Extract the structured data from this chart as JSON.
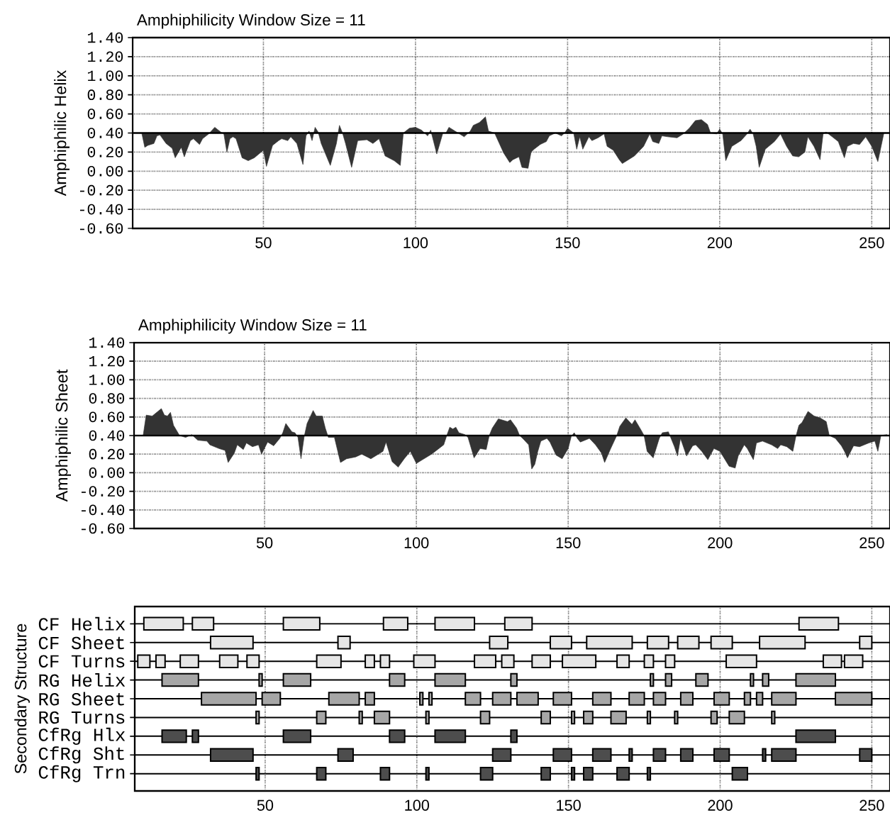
{
  "chart_data": [
    {
      "type": "area",
      "title": "Amphiphilicity Window Size = 11",
      "ylabel": "Amphiphilic Helix",
      "color": "#333333",
      "x": [
        10,
        11,
        12,
        14,
        15,
        16,
        18,
        20,
        21,
        23,
        24,
        26,
        27,
        29,
        30,
        32,
        34,
        36,
        37,
        38,
        39,
        40,
        41,
        43,
        45,
        47,
        50,
        51,
        53,
        55,
        56,
        58,
        59,
        61,
        63,
        64,
        65,
        66,
        67,
        68,
        69,
        72,
        74,
        75,
        76,
        77,
        79,
        81,
        84,
        86,
        88,
        90,
        93,
        95,
        96,
        98,
        100,
        102,
        104,
        105,
        107,
        109,
        110,
        111,
        113,
        116,
        118,
        119,
        121,
        123,
        124,
        126,
        129,
        131,
        132,
        134,
        135,
        137,
        138,
        139,
        141,
        143,
        144,
        146,
        148,
        149,
        150,
        152,
        153,
        154,
        155,
        157,
        158,
        160,
        162,
        163,
        165,
        167,
        168,
        170,
        172,
        175,
        177,
        178,
        180,
        181,
        183,
        186,
        188,
        190,
        192,
        194,
        196,
        197,
        199,
        200,
        201,
        202,
        204,
        205,
        207,
        209,
        210,
        211,
        212,
        213,
        215,
        218,
        220,
        222,
        224,
        226,
        228,
        229,
        231,
        233,
        234,
        235,
        237,
        239,
        241,
        242,
        244,
        246,
        248,
        250,
        252,
        254
      ],
      "values": [
        0.4,
        0.25,
        0.27,
        0.29,
        0.37,
        0.38,
        0.29,
        0.24,
        0.14,
        0.25,
        0.15,
        0.32,
        0.34,
        0.28,
        0.34,
        0.39,
        0.46,
        0.41,
        0.39,
        0.2,
        0.34,
        0.36,
        0.34,
        0.14,
        0.11,
        0.14,
        0.22,
        0.05,
        0.27,
        0.32,
        0.34,
        0.32,
        0.36,
        0.29,
        0.07,
        0.37,
        0.42,
        0.32,
        0.46,
        0.41,
        0.29,
        0.06,
        0.29,
        0.48,
        0.4,
        0.29,
        0.04,
        0.32,
        0.33,
        0.29,
        0.34,
        0.16,
        0.11,
        0.06,
        0.4,
        0.45,
        0.46,
        0.43,
        0.37,
        0.43,
        0.18,
        0.4,
        0.4,
        0.46,
        0.42,
        0.36,
        0.42,
        0.48,
        0.51,
        0.57,
        0.42,
        0.4,
        0.19,
        0.09,
        0.12,
        0.15,
        0.04,
        0.03,
        0.2,
        0.23,
        0.28,
        0.31,
        0.37,
        0.4,
        0.37,
        0.4,
        0.45,
        0.4,
        0.23,
        0.36,
        0.23,
        0.36,
        0.32,
        0.35,
        0.39,
        0.26,
        0.22,
        0.12,
        0.08,
        0.12,
        0.16,
        0.26,
        0.39,
        0.31,
        0.29,
        0.37,
        0.36,
        0.35,
        0.39,
        0.45,
        0.53,
        0.54,
        0.49,
        0.4,
        0.39,
        0.44,
        0.39,
        0.11,
        0.26,
        0.28,
        0.32,
        0.39,
        0.44,
        0.39,
        0.26,
        0.04,
        0.23,
        0.31,
        0.39,
        0.26,
        0.16,
        0.15,
        0.2,
        0.36,
        0.26,
        0.12,
        0.39,
        0.41,
        0.36,
        0.31,
        0.14,
        0.26,
        0.29,
        0.28,
        0.36,
        0.26,
        0.1,
        0.4
      ],
      "xlim": [
        7,
        256
      ],
      "xticks": [
        50,
        100,
        150,
        200,
        250
      ],
      "ylim": [
        -0.6,
        1.4
      ],
      "yticks": [
        {
          "value": -0.6,
          "label": "-0.60"
        },
        {
          "value": -0.4,
          "label": "-0.40"
        },
        {
          "value": -0.2,
          "label": "-0.20"
        },
        {
          "value": 0,
          "label": "0.00"
        },
        {
          "value": 0.2,
          "label": "0.20"
        },
        {
          "value": 0.4,
          "label": "0.40"
        },
        {
          "value": 0.6,
          "label": "0.60"
        },
        {
          "value": 0.8,
          "label": "0.80"
        },
        {
          "value": 1.0,
          "label": "1.00"
        },
        {
          "value": 1.2,
          "label": "1.20"
        },
        {
          "value": 1.4,
          "label": "1.40"
        }
      ],
      "ref_lines": [
        {
          "axis": "y",
          "value": 0.4
        }
      ],
      "grid": true
    },
    {
      "type": "area",
      "title": "Amphiphilicity Window Size = 11",
      "ylabel": "Amphiphilic Sheet",
      "color": "#333333",
      "x": [
        10,
        11,
        13,
        16,
        17,
        18,
        19,
        20,
        22,
        24,
        26,
        28,
        31,
        32,
        35,
        37,
        38,
        40,
        41,
        43,
        44,
        46,
        48,
        49,
        51,
        53,
        55,
        56,
        57,
        59,
        60,
        61,
        62,
        63,
        64,
        66,
        67,
        69,
        70,
        71,
        73,
        75,
        77,
        80,
        82,
        85,
        86,
        89,
        90,
        92,
        94,
        96,
        98,
        100,
        102,
        105,
        107,
        109,
        110,
        111,
        112,
        113,
        114,
        116,
        117,
        119,
        121,
        123,
        124,
        125,
        127,
        130,
        131,
        133,
        134,
        135,
        137,
        138,
        139,
        140,
        141,
        143,
        144,
        146,
        148,
        150,
        151,
        152,
        153,
        154,
        157,
        159,
        161,
        162,
        164,
        166,
        167,
        169,
        171,
        172,
        174,
        175,
        176,
        178,
        180,
        181,
        183,
        185,
        186,
        187,
        189,
        191,
        192,
        194,
        196,
        198,
        200,
        203,
        205,
        206,
        208,
        209,
        211,
        212,
        214,
        217,
        219,
        220,
        222,
        224,
        225,
        226,
        227,
        229,
        231,
        233,
        235,
        236,
        238,
        240,
        241,
        242,
        244,
        246,
        249,
        251,
        252,
        253,
        255
      ],
      "values": [
        0.4,
        0.62,
        0.61,
        0.69,
        0.62,
        0.61,
        0.65,
        0.51,
        0.4,
        0.38,
        0.41,
        0.35,
        0.34,
        0.3,
        0.26,
        0.24,
        0.11,
        0.21,
        0.3,
        0.25,
        0.32,
        0.28,
        0.3,
        0.2,
        0.33,
        0.29,
        0.37,
        0.43,
        0.53,
        0.44,
        0.43,
        0.38,
        0.15,
        0.38,
        0.53,
        0.67,
        0.61,
        0.61,
        0.48,
        0.38,
        0.38,
        0.11,
        0.15,
        0.17,
        0.2,
        0.15,
        0.17,
        0.23,
        0.33,
        0.12,
        0.06,
        0.15,
        0.23,
        0.1,
        0.14,
        0.2,
        0.25,
        0.3,
        0.4,
        0.49,
        0.47,
        0.49,
        0.43,
        0.41,
        0.38,
        0.16,
        0.26,
        0.25,
        0.4,
        0.48,
        0.58,
        0.55,
        0.57,
        0.48,
        0.4,
        0.37,
        0.3,
        0.04,
        0.09,
        0.23,
        0.34,
        0.37,
        0.33,
        0.19,
        0.15,
        0.26,
        0.39,
        0.43,
        0.37,
        0.33,
        0.37,
        0.3,
        0.21,
        0.11,
        0.26,
        0.4,
        0.5,
        0.59,
        0.52,
        0.57,
        0.46,
        0.4,
        0.23,
        0.16,
        0.37,
        0.43,
        0.44,
        0.28,
        0.18,
        0.37,
        0.18,
        0.29,
        0.3,
        0.23,
        0.14,
        0.26,
        0.23,
        0.07,
        0.05,
        0.18,
        0.3,
        0.26,
        0.14,
        0.32,
        0.34,
        0.3,
        0.26,
        0.3,
        0.28,
        0.23,
        0.39,
        0.51,
        0.54,
        0.66,
        0.61,
        0.59,
        0.55,
        0.4,
        0.37,
        0.29,
        0.23,
        0.16,
        0.29,
        0.28,
        0.32,
        0.34,
        0.23,
        0.4,
        0.41
      ],
      "xlim": [
        7,
        256
      ],
      "xticks": [
        50,
        100,
        150,
        200,
        250
      ],
      "ylim": [
        -0.6,
        1.4
      ],
      "yticks": [
        {
          "value": -0.6,
          "label": "-0.60"
        },
        {
          "value": -0.4,
          "label": "-0.40"
        },
        {
          "value": -0.2,
          "label": "-0.20"
        },
        {
          "value": 0,
          "label": "0.00"
        },
        {
          "value": 0.2,
          "label": "0.20"
        },
        {
          "value": 0.4,
          "label": "0.40"
        },
        {
          "value": 0.6,
          "label": "0.60"
        },
        {
          "value": 0.8,
          "label": "0.80"
        },
        {
          "value": 1.0,
          "label": "1.00"
        },
        {
          "value": 1.2,
          "label": "1.20"
        },
        {
          "value": 1.4,
          "label": "1.40"
        }
      ],
      "ref_lines": [
        {
          "axis": "y",
          "value": 0.4
        }
      ],
      "grid": true
    },
    {
      "type": "bar",
      "orientation": "horizontal",
      "ylabel": "Secondary Structure",
      "categories": [
        "CF Helix",
        "CF Sheet",
        "CF Turns",
        "RG Helix",
        "RG Sheet",
        "RG Turns",
        "CfRg Hlx",
        "CfRg Sht",
        "CfRg Trn"
      ],
      "series": [
        {
          "colors": [
            "#e6e6e6",
            "#e6e6e6",
            "#e6e6e6",
            "#a6a6a6",
            "#a6a6a6",
            "#a6a6a6",
            "#4d4d4d",
            "#4d4d4d",
            "#4d4d4d"
          ],
          "base": [
            10,
            32,
            8,
            16,
            29,
            47,
            16,
            32,
            47
          ],
          "values": [
            13,
            14,
            4,
            12,
            18,
            1,
            8,
            14,
            1
          ]
        },
        {
          "colors": [
            "#e6e6e6",
            "#e6e6e6",
            "#e6e6e6",
            "#a6a6a6",
            "#a6a6a6",
            "#a6a6a6",
            "#4d4d4d",
            "#4d4d4d",
            "#4d4d4d"
          ],
          "base": [
            26,
            74,
            14,
            48,
            49,
            67,
            26,
            74,
            67
          ],
          "values": [
            7,
            4,
            3,
            1,
            6,
            3,
            2,
            5,
            3
          ]
        },
        {
          "colors": [
            "#e6e6e6",
            "#e6e6e6",
            "#e6e6e6",
            "#a6a6a6",
            "#a6a6a6",
            "#a6a6a6",
            "#4d4d4d",
            "#4d4d4d",
            "#4d4d4d"
          ],
          "base": [
            56,
            124,
            22,
            56,
            71,
            81,
            56,
            125,
            88
          ],
          "values": [
            12,
            6,
            6,
            9,
            10,
            1,
            9,
            6,
            3
          ]
        },
        {
          "colors": [
            "#e6e6e6",
            "#e6e6e6",
            "#e6e6e6",
            "#a6a6a6",
            "#a6a6a6",
            "#a6a6a6",
            "#4d4d4d",
            "#4d4d4d",
            "#4d4d4d"
          ],
          "base": [
            89,
            144,
            35,
            91,
            83,
            86,
            91,
            145,
            103
          ],
          "values": [
            8,
            7,
            6,
            5,
            3,
            5,
            5,
            6,
            1
          ]
        },
        {
          "colors": [
            "#e6e6e6",
            "#e6e6e6",
            "#e6e6e6",
            "#a6a6a6",
            "#a6a6a6",
            "#a6a6a6",
            "#4d4d4d",
            "#4d4d4d",
            "#4d4d4d"
          ],
          "base": [
            106,
            156,
            44,
            106,
            101,
            103,
            106,
            158,
            121
          ],
          "values": [
            13,
            15,
            4,
            10,
            1,
            1,
            10,
            6,
            4
          ]
        },
        {
          "colors": [
            "#e6e6e6",
            "#e6e6e6",
            "#e6e6e6",
            "#a6a6a6",
            "#a6a6a6",
            "#a6a6a6",
            "#4d4d4d",
            "#4d4d4d",
            "#4d4d4d"
          ],
          "base": [
            129,
            176,
            67,
            131,
            104,
            121,
            131,
            170,
            141
          ],
          "values": [
            9,
            7,
            8,
            2,
            1,
            3,
            2,
            1,
            3
          ]
        },
        {
          "colors": [
            "#e6e6e6",
            "#e6e6e6",
            "#e6e6e6",
            "#a6a6a6",
            "#a6a6a6",
            "#a6a6a6",
            "#4d4d4d",
            "#4d4d4d",
            "#4d4d4d"
          ],
          "base": [
            226,
            186,
            83,
            177,
            116,
            141,
            225,
            178,
            151
          ],
          "values": [
            13,
            7,
            3,
            1,
            5,
            3,
            13,
            4,
            1
          ]
        },
        {
          "colors": [
            null,
            "#e6e6e6",
            "#e6e6e6",
            "#a6a6a6",
            "#a6a6a6",
            "#a6a6a6",
            null,
            "#4d4d4d",
            "#4d4d4d"
          ],
          "base": [
            null,
            197,
            88,
            182,
            125,
            151,
            null,
            187,
            155
          ],
          "values": [
            null,
            7,
            3,
            2,
            6,
            1,
            null,
            4,
            3
          ]
        },
        {
          "colors": [
            null,
            "#e6e6e6",
            "#e6e6e6",
            "#a6a6a6",
            "#a6a6a6",
            "#a6a6a6",
            null,
            "#4d4d4d",
            "#4d4d4d"
          ],
          "base": [
            null,
            213,
            99,
            192,
            133,
            155,
            null,
            198,
            166
          ],
          "values": [
            null,
            15,
            7,
            4,
            7,
            3,
            null,
            5,
            4
          ]
        },
        {
          "colors": [
            null,
            "#e6e6e6",
            "#e6e6e6",
            "#a6a6a6",
            "#a6a6a6",
            "#a6a6a6",
            null,
            "#4d4d4d",
            "#4d4d4d"
          ],
          "base": [
            null,
            246,
            119,
            210,
            145,
            164,
            null,
            214,
            176
          ],
          "values": [
            null,
            4,
            7,
            1,
            6,
            5,
            null,
            1,
            1
          ]
        },
        {
          "colors": [
            null,
            null,
            "#e6e6e6",
            "#a6a6a6",
            "#a6a6a6",
            "#a6a6a6",
            null,
            "#4d4d4d",
            "#4d4d4d"
          ],
          "base": [
            null,
            null,
            128,
            214,
            158,
            176,
            null,
            217,
            204
          ],
          "values": [
            null,
            null,
            4,
            2,
            6,
            1,
            null,
            8,
            5
          ]
        },
        {
          "colors": [
            null,
            null,
            "#e6e6e6",
            "#a6a6a6",
            "#a6a6a6",
            "#a6a6a6",
            null,
            "#4d4d4d",
            null
          ],
          "base": [
            null,
            null,
            138,
            225,
            170,
            185,
            null,
            246,
            null
          ],
          "values": [
            null,
            null,
            6,
            13,
            5,
            1,
            null,
            4,
            null
          ]
        },
        {
          "colors": [
            null,
            null,
            "#e6e6e6",
            null,
            "#a6a6a6",
            "#a6a6a6",
            null,
            null,
            null
          ],
          "base": [
            null,
            null,
            148,
            null,
            178,
            197,
            null,
            null,
            null
          ],
          "values": [
            null,
            null,
            11,
            null,
            4,
            2,
            null,
            null,
            null
          ]
        },
        {
          "colors": [
            null,
            null,
            "#e6e6e6",
            null,
            "#a6a6a6",
            "#a6a6a6",
            null,
            null,
            null
          ],
          "base": [
            null,
            null,
            166,
            null,
            187,
            203,
            null,
            null,
            null
          ],
          "values": [
            null,
            null,
            4,
            null,
            4,
            5,
            null,
            null,
            null
          ]
        },
        {
          "colors": [
            null,
            null,
            "#e6e6e6",
            null,
            "#a6a6a6",
            "#a6a6a6",
            null,
            null,
            null
          ],
          "base": [
            null,
            null,
            175,
            null,
            198,
            217,
            null,
            null,
            null
          ],
          "values": [
            null,
            null,
            3,
            null,
            5,
            1,
            null,
            null,
            null
          ]
        },
        {
          "colors": [
            null,
            null,
            "#e6e6e6",
            null,
            "#a6a6a6",
            null,
            null,
            null,
            null
          ],
          "base": [
            null,
            null,
            182,
            null,
            208,
            null,
            null,
            null,
            null
          ],
          "values": [
            null,
            null,
            3,
            null,
            2,
            null,
            null,
            null,
            null
          ]
        },
        {
          "colors": [
            null,
            null,
            "#e6e6e6",
            null,
            "#a6a6a6",
            null,
            null,
            null,
            null
          ],
          "base": [
            null,
            null,
            202,
            null,
            212,
            null,
            null,
            null,
            null
          ],
          "values": [
            null,
            null,
            10,
            null,
            2,
            null,
            null,
            null,
            null
          ]
        },
        {
          "colors": [
            null,
            null,
            "#e6e6e6",
            null,
            "#a6a6a6",
            null,
            null,
            null,
            null
          ],
          "base": [
            null,
            null,
            234,
            null,
            217,
            null,
            null,
            null,
            null
          ],
          "values": [
            null,
            null,
            6,
            null,
            8,
            null,
            null,
            null,
            null
          ]
        },
        {
          "colors": [
            null,
            null,
            "#e6e6e6",
            null,
            "#a6a6a6",
            null,
            null,
            null,
            null
          ],
          "base": [
            null,
            null,
            241,
            null,
            238,
            null,
            null,
            null,
            null
          ],
          "values": [
            null,
            null,
            6,
            null,
            12,
            null,
            null,
            null,
            null
          ]
        }
      ],
      "xlim": [
        7,
        256
      ],
      "xticks": [
        50,
        100,
        150,
        200,
        250
      ],
      "grid": true
    }
  ]
}
